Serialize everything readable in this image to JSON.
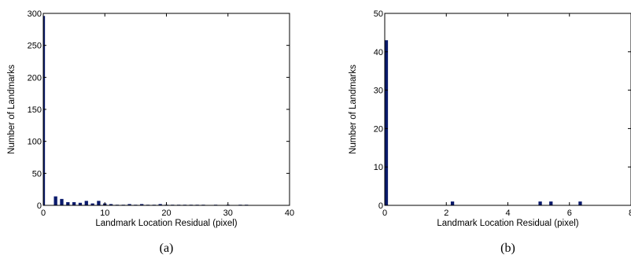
{
  "bar_color": "#0a1a6b",
  "chart_data": [
    {
      "type": "bar",
      "caption": "(a)",
      "xlabel": "Landmark Location Residual (pixel)",
      "ylabel": "Number of Landmarks",
      "xlim": [
        0,
        40
      ],
      "ylim": [
        0,
        300
      ],
      "xticks": [
        0,
        10,
        20,
        30,
        40
      ],
      "yticks": [
        0,
        50,
        100,
        150,
        200,
        250,
        300
      ],
      "grid": false,
      "bar_width": 0.55,
      "x": [
        0,
        2,
        3,
        4,
        5,
        6,
        7,
        8,
        9,
        10,
        11,
        12,
        13,
        14,
        15,
        16,
        17,
        18,
        19,
        20,
        21,
        22,
        23,
        24,
        25,
        26,
        28,
        30,
        32,
        33
      ],
      "values": [
        296,
        14,
        10,
        5,
        5,
        4,
        7,
        3,
        7,
        3,
        2,
        1,
        1,
        2,
        1,
        2,
        1,
        1,
        2,
        1,
        1,
        1,
        1,
        1,
        1,
        1,
        1,
        1,
        1,
        1
      ]
    },
    {
      "type": "bar",
      "caption": "(b)",
      "xlabel": "Landmark Location Residual (pixel)",
      "ylabel": "Number of Landmarks",
      "xlim": [
        0,
        8
      ],
      "ylim": [
        0,
        50
      ],
      "xticks": [
        0,
        2,
        4,
        6,
        8
      ],
      "yticks": [
        0,
        10,
        20,
        30,
        40,
        50
      ],
      "grid": false,
      "bar_width": 0.11,
      "x": [
        0.05,
        2.2,
        5.05,
        5.4,
        6.35
      ],
      "values": [
        43,
        1,
        1,
        1,
        1
      ]
    }
  ]
}
